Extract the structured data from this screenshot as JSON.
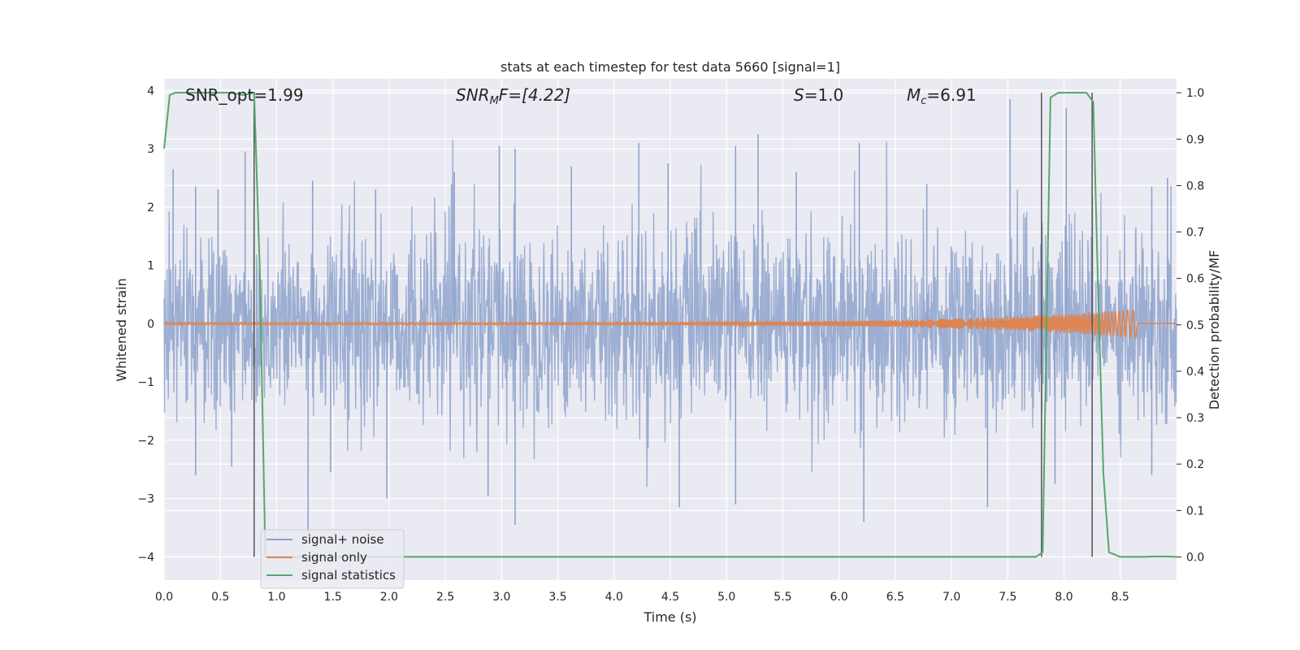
{
  "chart_data": {
    "type": "line",
    "title": "stats at each timestep for test data 5660 [signal=1]",
    "xlabel": "Time (s)",
    "ylabel": "Whitened strain",
    "y2label": "Detection probability/MF",
    "xlim": [
      0.0,
      9.0
    ],
    "ylim": [
      -4.4,
      4.2
    ],
    "y2lim": [
      -0.05,
      1.03
    ],
    "x_ticks": [
      "0.0",
      "0.5",
      "1.0",
      "1.5",
      "2.0",
      "2.5",
      "3.0",
      "3.5",
      "4.0",
      "4.5",
      "5.0",
      "5.5",
      "6.0",
      "6.5",
      "7.0",
      "7.5",
      "8.0",
      "8.5"
    ],
    "y_ticks": [
      "4",
      "3",
      "2",
      "1",
      "0",
      "−1",
      "−2",
      "−3",
      "−4"
    ],
    "y2_ticks": [
      "1.0",
      "0.9",
      "0.8",
      "0.7",
      "0.6",
      "0.5",
      "0.4",
      "0.3",
      "0.2",
      "0.1",
      "0.0"
    ],
    "grid": true,
    "legend_position": "lower-left",
    "annotations": {
      "snr_opt": "SNR_opt=1.99",
      "snr_mf_prefix": "SNR",
      "snr_mf_sub": "M",
      "snr_mf_suffix": "F=[4.22]",
      "s_prefix": "S",
      "s_suffix": "=1.0",
      "mc_prefix": "M",
      "mc_sub": "c",
      "mc_suffix": "=6.91"
    },
    "series": [
      {
        "name": "signal+ noise",
        "color": "#8ea3cc",
        "description_envelope": {
          "typical_abs": 1.5,
          "peaks_upper": [
            [
              0.08,
              2.65
            ],
            [
              0.28,
              2.35
            ],
            [
              0.48,
              2.3
            ],
            [
              0.72,
              2.95
            ],
            [
              1.32,
              2.45
            ],
            [
              1.88,
              2.3
            ],
            [
              2.58,
              2.6
            ],
            [
              2.98,
              3.05
            ],
            [
              3.12,
              3.0
            ],
            [
              3.62,
              2.7
            ],
            [
              4.22,
              3.1
            ],
            [
              4.48,
              2.75
            ],
            [
              5.08,
              3.05
            ],
            [
              5.28,
              3.25
            ],
            [
              5.62,
              2.6
            ],
            [
              6.18,
              3.1
            ],
            [
              6.78,
              2.4
            ],
            [
              7.52,
              3.85
            ],
            [
              8.02,
              3.7
            ],
            [
              8.78,
              2.35
            ],
            [
              8.92,
              2.5
            ]
          ],
          "peaks_lower": [
            [
              0.28,
              -2.6
            ],
            [
              0.6,
              -2.45
            ],
            [
              1.28,
              -3.65
            ],
            [
              1.48,
              -2.55
            ],
            [
              1.98,
              -3.0
            ],
            [
              2.88,
              -2.95
            ],
            [
              3.12,
              -3.45
            ],
            [
              4.58,
              -3.15
            ],
            [
              5.08,
              -3.1
            ],
            [
              6.22,
              -3.4
            ],
            [
              7.32,
              -3.15
            ],
            [
              7.92,
              -2.75
            ],
            [
              8.78,
              -2.6
            ]
          ]
        }
      },
      {
        "name": "signal only",
        "color": "#dd8452",
        "chirp": {
          "start": 0.0,
          "end": 8.65,
          "amplitude_end": 0.25,
          "amplitude_start": 0.02
        }
      },
      {
        "name": "signal statistics",
        "color": "#55a868",
        "axis": "y2",
        "x": [
          0.0,
          0.05,
          0.1,
          0.2,
          0.3,
          0.4,
          0.5,
          0.6,
          0.7,
          0.8,
          0.85,
          0.9,
          1.0,
          2.0,
          3.0,
          4.0,
          5.0,
          6.0,
          7.0,
          7.75,
          7.81,
          7.88,
          7.95,
          8.0,
          8.1,
          8.2,
          8.26,
          8.3,
          8.35,
          8.4,
          8.5,
          8.6,
          8.7,
          8.8,
          8.9,
          9.0
        ],
        "y": [
          0.88,
          0.995,
          1.0,
          1.0,
          1.0,
          1.0,
          1.0,
          1.0,
          0.995,
          1.0,
          0.62,
          0.0,
          0.0,
          0.0,
          0.0,
          0.0,
          0.0,
          0.0,
          0.0,
          0.0,
          0.01,
          0.99,
          1.0,
          1.0,
          1.0,
          1.0,
          0.98,
          0.6,
          0.18,
          0.01,
          0.0,
          0.0,
          0.0,
          0.001,
          0.001,
          0.0
        ]
      }
    ],
    "vlines": [
      0.8,
      7.8,
      8.25
    ],
    "vlines_color": "#555555"
  }
}
